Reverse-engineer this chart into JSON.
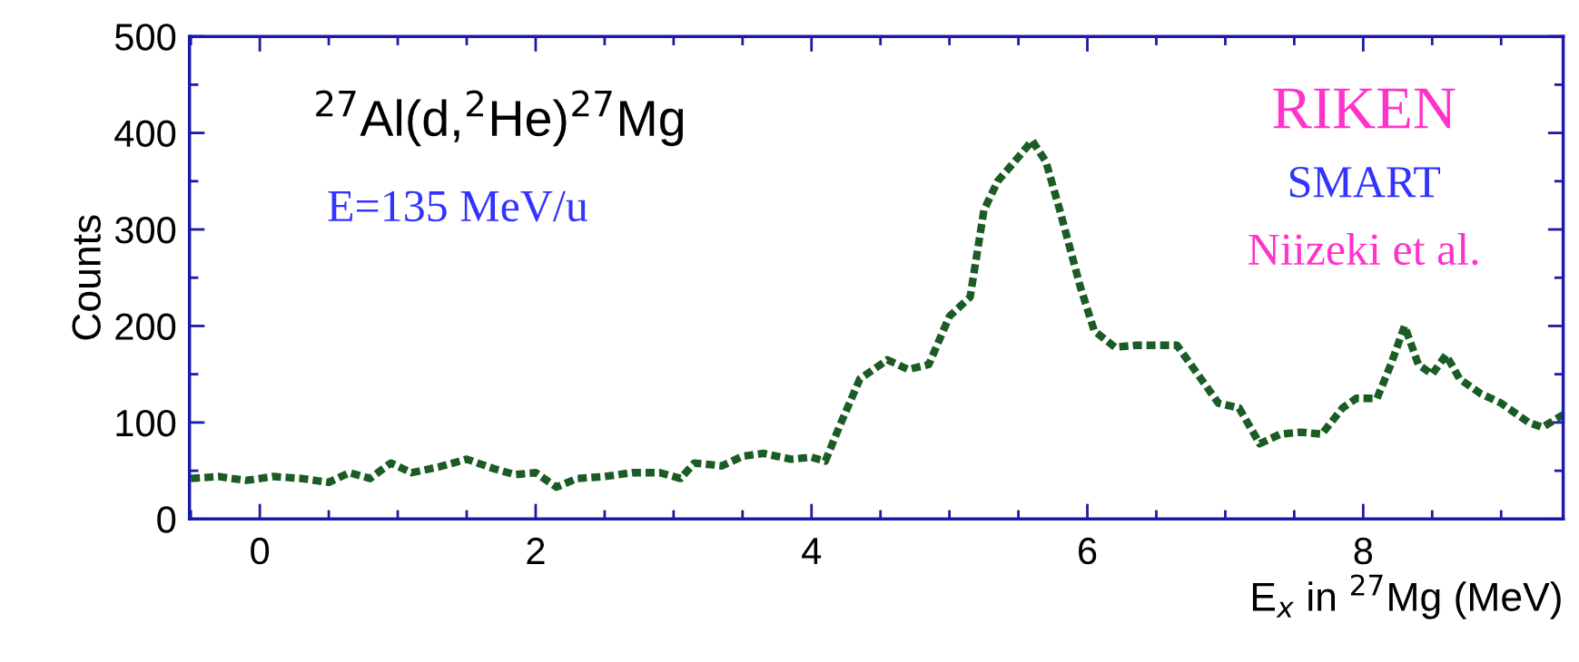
{
  "chart_data": {
    "type": "line",
    "xlabel": "E$_{x}$ in $^{27}$Mg (MeV)",
    "ylabel": "Counts",
    "annotations": [
      "$^{27}$Al(d,$^{2}$He)$^{27}$Mg",
      "E=135 MeV/u",
      "RIKEN",
      "SMART",
      "Niizeki et al."
    ],
    "xlim": [
      -0.51,
      9.45
    ],
    "ylim": [
      0,
      500
    ],
    "xticks": [
      0,
      2,
      4,
      6,
      8
    ],
    "yticks": [
      0,
      100,
      200,
      300,
      400,
      500
    ],
    "grid": false,
    "legend": false,
    "line_style": "dashed",
    "marker": "none",
    "series": [
      {
        "color": "#1a5c24",
        "x": [
          -0.5,
          -0.3,
          -0.1,
          0.1,
          0.3,
          0.5,
          0.65,
          0.8,
          0.95,
          1.1,
          1.3,
          1.5,
          1.7,
          1.85,
          2.0,
          2.15,
          2.3,
          2.5,
          2.7,
          2.9,
          3.05,
          3.15,
          3.35,
          3.5,
          3.65,
          3.85,
          4.0,
          4.1,
          4.2,
          4.35,
          4.55,
          4.7,
          4.85,
          5.0,
          5.15,
          5.25,
          5.35,
          5.5,
          5.6,
          5.7,
          5.8,
          5.95,
          6.05,
          6.2,
          6.35,
          6.5,
          6.65,
          6.8,
          6.95,
          7.1,
          7.25,
          7.4,
          7.55,
          7.7,
          7.85,
          7.95,
          8.1,
          8.2,
          8.3,
          8.4,
          8.5,
          8.6,
          8.7,
          8.85,
          9.0,
          9.2,
          9.3,
          9.45
        ],
        "values": [
          42,
          44,
          40,
          44,
          42,
          38,
          48,
          42,
          58,
          48,
          54,
          62,
          52,
          46,
          48,
          33,
          42,
          44,
          48,
          48,
          42,
          58,
          55,
          65,
          68,
          62,
          64,
          60,
          95,
          145,
          165,
          155,
          160,
          210,
          230,
          320,
          350,
          375,
          392,
          370,
          320,
          240,
          195,
          178,
          180,
          180,
          180,
          150,
          120,
          115,
          78,
          88,
          90,
          88,
          115,
          125,
          125,
          160,
          200,
          160,
          150,
          170,
          145,
          130,
          120,
          100,
          95,
          108
        ]
      }
    ]
  }
}
